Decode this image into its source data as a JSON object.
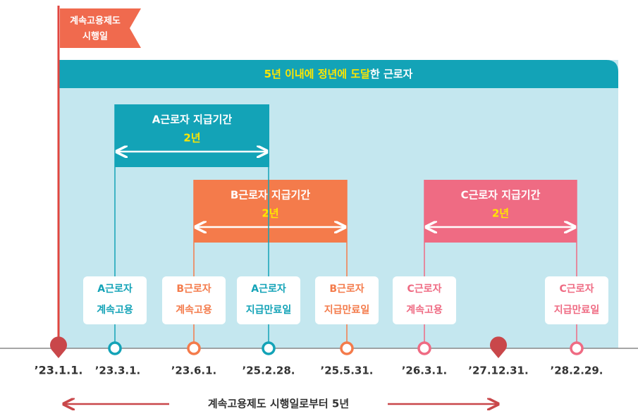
{
  "flag": {
    "lines": [
      "계속고용제도",
      "시행일"
    ]
  },
  "banner": {
    "highlight": "5년 이내에 정년에 도달",
    "rest": "한 근로자"
  },
  "periods": [
    {
      "title": "A근로자 지급기간",
      "duration": "2년"
    },
    {
      "title": "B근로자 지급기간",
      "duration": "2년"
    },
    {
      "title": "C근로자 지급기간",
      "duration": "2년"
    }
  ],
  "events": [
    {
      "lines": [
        "A근로자",
        "계속고용"
      ]
    },
    {
      "lines": [
        "B근로자",
        "계속고용"
      ]
    },
    {
      "lines": [
        "A근로자",
        "지급만료일"
      ]
    },
    {
      "lines": [
        "B근로자",
        "지급만료일"
      ]
    },
    {
      "lines": [
        "C근로자",
        "계속고용"
      ]
    },
    {
      "lines": [
        "C근로자",
        "지급만료일"
      ]
    }
  ],
  "dates": [
    "’23.1.1.",
    "’23.3.1.",
    "’23.6.1.",
    "’25.2.28.",
    "’25.5.31.",
    "’26.3.1.",
    "’27.12.31.",
    "’28.2.29."
  ],
  "span": "계속고용제도 시행일로부터 5년"
}
